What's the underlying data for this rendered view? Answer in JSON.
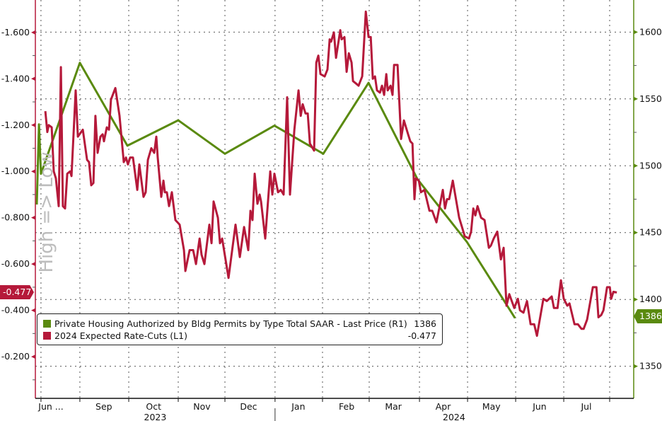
{
  "chart_data": {
    "type": "line",
    "title": "",
    "side_label": "High => Low",
    "x_unit": "approx. days from chart start",
    "x_ticks": [
      {
        "label": "Jun ...",
        "x": 10
      },
      {
        "label": "Sep",
        "x": 44
      },
      {
        "label": "Oct",
        "x": 76
      },
      {
        "label": "Nov",
        "x": 107
      },
      {
        "label": "Dec",
        "x": 137
      },
      {
        "label": "Jan",
        "x": 169
      },
      {
        "label": "Feb",
        "x": 200
      },
      {
        "label": "Mar",
        "x": 230
      },
      {
        "label": "Apr",
        "x": 262
      },
      {
        "label": "May",
        "x": 293
      },
      {
        "label": "Jun",
        "x": 324
      },
      {
        "label": "Jul",
        "x": 354
      }
    ],
    "year_labels": [
      {
        "label": "2023",
        "x": 77
      },
      {
        "label": "2024",
        "x": 269
      }
    ],
    "year_separator_x": 154,
    "month_gridlines_x": [
      3.6,
      28.6,
      60,
      91.8,
      121.8,
      154,
      184.5,
      214.5,
      246.8,
      277.7,
      308.6,
      339.5,
      369
    ],
    "xlim": [
      0,
      384
    ],
    "left_axis": {
      "ticks": [
        "-1.600",
        "-1.400",
        "-1.200",
        "-1.000",
        "-0.800",
        "-0.600",
        "-0.400",
        "-0.200"
      ],
      "tick_values": [
        -1.6,
        -1.4,
        -1.2,
        -1.0,
        -0.8,
        -0.6,
        -0.4,
        -0.2
      ],
      "inverted": true,
      "range": [
        -0.02,
        -1.74
      ],
      "color": "#b5193a"
    },
    "right_axis": {
      "ticks": [
        "1350",
        "1400",
        "1450",
        "1500",
        "1550",
        "1600"
      ],
      "tick_values": [
        1350,
        1400,
        1450,
        1500,
        1550,
        1600
      ],
      "range": [
        1326,
        1624
      ],
      "color": "#5a8a0f"
    },
    "grid": true,
    "legend_position": "bottom-left",
    "series": [
      {
        "name": "Private Housing Authorized by Bldg Permits by Type Total SAAR - Last Price (R1)",
        "last": "1386",
        "axis": "right",
        "color": "#5a8a0f",
        "points": [
          [
            0.9,
            1471
          ],
          [
            2.3,
            1531
          ],
          [
            3.6,
            1494
          ],
          [
            28.6,
            1577
          ],
          [
            59.1,
            1515
          ],
          [
            91.8,
            1534
          ],
          [
            121.8,
            1509
          ],
          [
            153.6,
            1530
          ],
          [
            185,
            1509
          ],
          [
            214.1,
            1562
          ],
          [
            245.5,
            1490
          ],
          [
            277.3,
            1443
          ],
          [
            308.2,
            1386
          ]
        ]
      },
      {
        "name": "2024 Expected Rate-Cuts (L1)",
        "last": "-0.477",
        "axis": "left",
        "color": "#b5193a",
        "points": [
          [
            6.4,
            -1.26
          ],
          [
            7.7,
            -1.17
          ],
          [
            8.6,
            -1.2
          ],
          [
            10.5,
            -1.19
          ],
          [
            11.8,
            -1.0
          ],
          [
            13.2,
            -0.97
          ],
          [
            15,
            -0.85
          ],
          [
            16.4,
            -1.45
          ],
          [
            17.7,
            -0.85
          ],
          [
            19.1,
            -0.84
          ],
          [
            20.5,
            -0.99
          ],
          [
            22.3,
            -1.0
          ],
          [
            23.2,
            -0.98
          ],
          [
            25.9,
            -1.35
          ],
          [
            27.3,
            -1.15
          ],
          [
            30.5,
            -1.18
          ],
          [
            33.2,
            -1.05
          ],
          [
            34.5,
            -1.04
          ],
          [
            35.9,
            -0.94
          ],
          [
            37.3,
            -0.95
          ],
          [
            38.6,
            -1.24
          ],
          [
            40,
            -1.08
          ],
          [
            41.8,
            -1.15
          ],
          [
            43.2,
            -1.16
          ],
          [
            44.1,
            -1.13
          ],
          [
            45.9,
            -1.19
          ],
          [
            47.3,
            -1.18
          ],
          [
            48.6,
            -1.31
          ],
          [
            51.4,
            -1.36
          ],
          [
            54.1,
            -1.24
          ],
          [
            56.8,
            -1.04
          ],
          [
            58.2,
            -1.06
          ],
          [
            59.5,
            -1.03
          ],
          [
            60.9,
            -1.06
          ],
          [
            62.7,
            -1.06
          ],
          [
            65.5,
            -0.92
          ],
          [
            66.8,
            -1.03
          ],
          [
            69.5,
            -0.89
          ],
          [
            70.9,
            -0.91
          ],
          [
            72.3,
            -1.05
          ],
          [
            74.5,
            -1.1
          ],
          [
            76.4,
            -1.08
          ],
          [
            77.7,
            -1.15
          ],
          [
            78.6,
            -1.06
          ],
          [
            80.9,
            -0.89
          ],
          [
            82.3,
            -0.96
          ],
          [
            83.2,
            -0.91
          ],
          [
            84.5,
            -0.91
          ],
          [
            85.9,
            -0.85
          ],
          [
            87.7,
            -0.91
          ],
          [
            90,
            -0.79
          ],
          [
            92.7,
            -0.77
          ],
          [
            95.5,
            -0.66
          ],
          [
            96.4,
            -0.57
          ],
          [
            99.1,
            -0.66
          ],
          [
            101.4,
            -0.66
          ],
          [
            103.2,
            -0.6
          ],
          [
            105.5,
            -0.71
          ],
          [
            106.8,
            -0.64
          ],
          [
            108.6,
            -0.6
          ],
          [
            111.8,
            -0.77
          ],
          [
            113.2,
            -0.69
          ],
          [
            114.5,
            -0.87
          ],
          [
            117.3,
            -0.8
          ],
          [
            118.6,
            -0.69
          ],
          [
            120,
            -0.71
          ],
          [
            124.1,
            -0.54
          ],
          [
            128.6,
            -0.77
          ],
          [
            131.4,
            -0.63
          ],
          [
            134.1,
            -0.76
          ],
          [
            136.8,
            -0.66
          ],
          [
            138.2,
            -0.83
          ],
          [
            139.5,
            -0.79
          ],
          [
            140.9,
            -0.99
          ],
          [
            142.7,
            -0.86
          ],
          [
            144.1,
            -0.9
          ],
          [
            145,
            -0.87
          ],
          [
            147.7,
            -0.71
          ],
          [
            150.9,
            -1.0
          ],
          [
            152.3,
            -0.9
          ],
          [
            153.6,
            -0.99
          ],
          [
            155.9,
            -0.91
          ],
          [
            157.7,
            -0.92
          ],
          [
            159.5,
            -0.9
          ],
          [
            161.8,
            -1.32
          ],
          [
            163.6,
            -0.9
          ],
          [
            166.4,
            -1.18
          ],
          [
            169.1,
            -1.35
          ],
          [
            170.5,
            -1.24
          ],
          [
            171.8,
            -1.29
          ],
          [
            173.6,
            -1.25
          ],
          [
            175,
            -1.25
          ],
          [
            176.4,
            -1.12
          ],
          [
            179.1,
            -1.09
          ],
          [
            180.5,
            -1.47
          ],
          [
            181.8,
            -1.5
          ],
          [
            183.2,
            -1.42
          ],
          [
            185.9,
            -1.41
          ],
          [
            187.7,
            -1.44
          ],
          [
            189.1,
            -1.57
          ],
          [
            190,
            -1.56
          ],
          [
            191.8,
            -1.6
          ],
          [
            193.2,
            -1.49
          ],
          [
            195.9,
            -1.61
          ],
          [
            196.8,
            -1.57
          ],
          [
            198.6,
            -1.58
          ],
          [
            200,
            -1.43
          ],
          [
            201.4,
            -1.51
          ],
          [
            203.2,
            -1.47
          ],
          [
            204.1,
            -1.39
          ],
          [
            205.9,
            -1.38
          ],
          [
            207.7,
            -1.37
          ],
          [
            210,
            -1.41
          ],
          [
            212.3,
            -1.69
          ],
          [
            214.1,
            -1.58
          ],
          [
            215.5,
            -1.58
          ],
          [
            216.8,
            -1.4
          ],
          [
            218.2,
            -1.41
          ],
          [
            219.5,
            -1.35
          ],
          [
            221.4,
            -1.34
          ],
          [
            222.7,
            -1.37
          ],
          [
            224.1,
            -1.33
          ],
          [
            225.5,
            -1.42
          ],
          [
            226.4,
            -1.35
          ],
          [
            228.2,
            -1.37
          ],
          [
            229.5,
            -1.33
          ],
          [
            230.5,
            -1.46
          ],
          [
            232.7,
            -1.46
          ],
          [
            235,
            -1.14
          ],
          [
            236.8,
            -1.22
          ],
          [
            239.5,
            -1.16
          ],
          [
            240.9,
            -1.13
          ],
          [
            242.3,
            -1.12
          ],
          [
            243.6,
            -0.88
          ],
          [
            244.5,
            -0.97
          ],
          [
            246.4,
            -0.96
          ],
          [
            247.7,
            -0.91
          ],
          [
            250,
            -0.92
          ],
          [
            253.2,
            -0.83
          ],
          [
            255,
            -0.83
          ],
          [
            257.7,
            -0.78
          ],
          [
            259.5,
            -0.84
          ],
          [
            261.8,
            -0.92
          ],
          [
            263.2,
            -0.84
          ],
          [
            264.5,
            -0.88
          ],
          [
            265.9,
            -0.88
          ],
          [
            268.2,
            -0.96
          ],
          [
            269.5,
            -0.91
          ],
          [
            272.3,
            -0.8
          ],
          [
            274.1,
            -0.76
          ],
          [
            275.9,
            -0.72
          ],
          [
            278.6,
            -0.71
          ],
          [
            280,
            -0.74
          ],
          [
            281.4,
            -0.84
          ],
          [
            282.7,
            -0.81
          ],
          [
            284.1,
            -0.85
          ],
          [
            286.4,
            -0.8
          ],
          [
            288.6,
            -0.79
          ],
          [
            291.4,
            -0.67
          ],
          [
            292.7,
            -0.68
          ],
          [
            294.5,
            -0.71
          ],
          [
            296.8,
            -0.74
          ],
          [
            299.1,
            -0.62
          ],
          [
            300.9,
            -0.67
          ],
          [
            302.7,
            -0.42
          ],
          [
            304.5,
            -0.47
          ],
          [
            307.7,
            -0.41
          ],
          [
            310,
            -0.45
          ],
          [
            311.4,
            -0.4
          ],
          [
            313.6,
            -0.39
          ],
          [
            315.9,
            -0.44
          ],
          [
            318.2,
            -0.34
          ],
          [
            320.5,
            -0.34
          ],
          [
            322.3,
            -0.29
          ],
          [
            326.4,
            -0.45
          ],
          [
            328.6,
            -0.44
          ],
          [
            331.8,
            -0.46
          ],
          [
            333.2,
            -0.41
          ],
          [
            335.5,
            -0.41
          ],
          [
            337.7,
            -0.53
          ],
          [
            339.5,
            -0.45
          ],
          [
            341.8,
            -0.42
          ],
          [
            343.2,
            -0.43
          ],
          [
            346.4,
            -0.34
          ],
          [
            348.6,
            -0.34
          ],
          [
            350.9,
            -0.32
          ],
          [
            352.3,
            -0.32
          ],
          [
            354.5,
            -0.36
          ],
          [
            358.2,
            -0.5
          ],
          [
            360.5,
            -0.5
          ],
          [
            361.8,
            -0.37
          ],
          [
            363.6,
            -0.38
          ],
          [
            365,
            -0.4
          ],
          [
            367.3,
            -0.5
          ],
          [
            369.1,
            -0.5
          ],
          [
            370,
            -0.45
          ],
          [
            371.4,
            -0.48
          ],
          [
            373.6,
            -0.477
          ]
        ]
      }
    ]
  }
}
